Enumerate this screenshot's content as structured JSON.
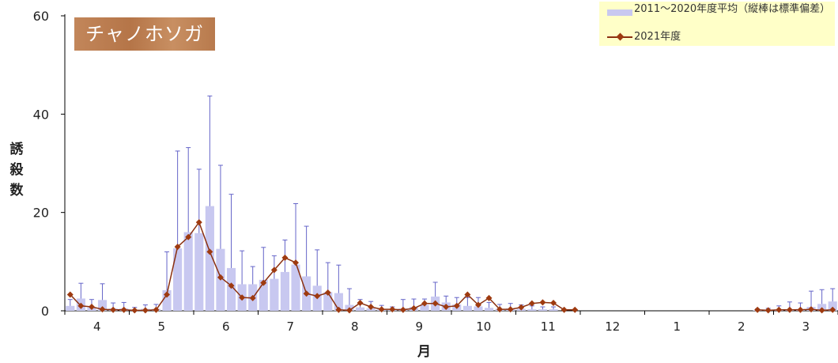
{
  "chart_data": {
    "type": "bar",
    "title": "チャノホソガ",
    "ylabel": "誘殺数",
    "xlabel": "月",
    "ylim": [
      0,
      60
    ],
    "yticks": [
      0,
      20,
      40,
      60
    ],
    "months": [
      "4",
      "5",
      "6",
      "7",
      "8",
      "9",
      "10",
      "11",
      "12",
      "1",
      "2",
      "3"
    ],
    "legend_position": "top-right",
    "series": [
      {
        "name": "2011～2020年度平均（縦棒は標準偏差）",
        "kind": "bar",
        "color": "#c8c8f0",
        "error_color": "#6464c8",
        "values": [
          1,
          2.5,
          0.7,
          2.2,
          0.5,
          0.5,
          0.2,
          0.4,
          0.4,
          4.2,
          12.7,
          16,
          15.8,
          21.3,
          12.6,
          8.7,
          5.4,
          5.4,
          6.3,
          6.5,
          7.9,
          9.4,
          7,
          5.1,
          3.8,
          3.6,
          1.2,
          0.7,
          0.5,
          0.3,
          0.2,
          0.5,
          0.8,
          1.2,
          2.9,
          1.7,
          1.3,
          1,
          0.9,
          0.6,
          0.4,
          0.5,
          0.4,
          0.3,
          0.3,
          0.3,
          0,
          0,
          0,
          0,
          0,
          0,
          0,
          0,
          0,
          0,
          0,
          0,
          0,
          0,
          0,
          0,
          0,
          0,
          0.1,
          0.1,
          0.2,
          0.2,
          0.4,
          0.8,
          1.4,
          1.9
        ],
        "errors": [
          1.3,
          3.1,
          1.6,
          3.3,
          1.1,
          1.2,
          0.5,
          0.8,
          0.9,
          7.8,
          19.8,
          17.2,
          13,
          22.4,
          17,
          15,
          6.8,
          3.6,
          6.6,
          4.7,
          6.5,
          12.4,
          10.2,
          7.3,
          6,
          5.7,
          3.3,
          1.6,
          1.4,
          0.8,
          0.6,
          1.8,
          1.6,
          1.2,
          2.9,
          1.3,
          1.4,
          1.7,
          1.8,
          1.1,
          0.9,
          1,
          0.8,
          0.7,
          0.5,
          0.5,
          0,
          0,
          0,
          0,
          0,
          0,
          0,
          0,
          0,
          0,
          0,
          0,
          0,
          0,
          0,
          0,
          0,
          0,
          0.3,
          0.4,
          0.8,
          1.6,
          1.2,
          3.2,
          2.9,
          2.6
        ]
      },
      {
        "name": "2021年度",
        "kind": "line",
        "color": "#9e3a10",
        "values": [
          3.3,
          1,
          0.8,
          0.3,
          0.2,
          0.2,
          0.1,
          0.1,
          0.2,
          3.3,
          13,
          15,
          18,
          12,
          6.8,
          5.1,
          2.7,
          2.6,
          5.7,
          8.3,
          10.8,
          9.8,
          3.5,
          3,
          3.7,
          0.2,
          0.1,
          1.6,
          0.8,
          0.3,
          0.3,
          0.2,
          0.5,
          1.5,
          1.5,
          0.8,
          1,
          3.3,
          1.2,
          2.6,
          0.3,
          0.3,
          0.7,
          1.5,
          1.7,
          1.6,
          0.2,
          0.2,
          null,
          null,
          null,
          null,
          null,
          null,
          null,
          null,
          null,
          null,
          null,
          null,
          null,
          null,
          null,
          null,
          0.2,
          0.1,
          0.2,
          0.2,
          0.2,
          0.3,
          0.1,
          0.2
        ]
      }
    ]
  }
}
